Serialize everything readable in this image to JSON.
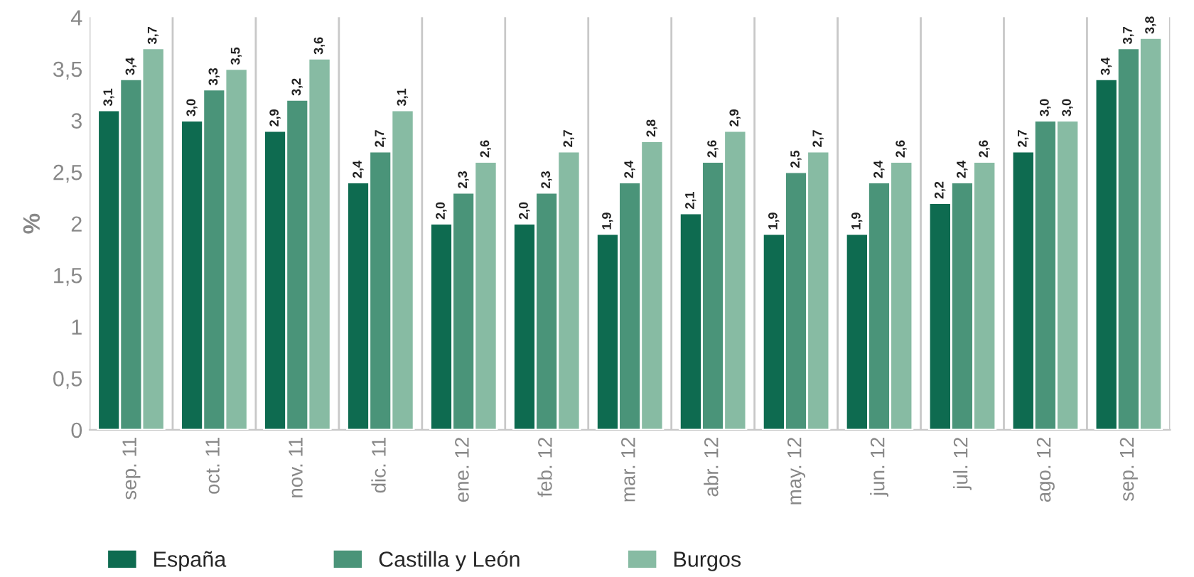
{
  "chart_data": {
    "type": "bar",
    "ylabel": "%",
    "categories": [
      "sep. 11",
      "oct. 11",
      "nov. 11",
      "dic. 11",
      "ene. 12",
      "feb. 12",
      "mar. 12",
      "abr. 12",
      "may. 12",
      "jun. 12",
      "jul. 12",
      "ago. 12",
      "sep. 12"
    ],
    "series": [
      {
        "name": "España",
        "color": "#0e6b50",
        "values": [
          3.1,
          3.0,
          2.9,
          2.4,
          2.0,
          2.0,
          1.9,
          2.1,
          1.9,
          1.9,
          2.2,
          2.7,
          3.4
        ],
        "value_labels": [
          "3,1",
          "3,0",
          "2,9",
          "2,4",
          "2,0",
          "2,0",
          "1,9",
          "2,1",
          "1,9",
          "1,9",
          "2,2",
          "2,7",
          "3,4"
        ]
      },
      {
        "name": "Castilla y León",
        "color": "#4a9479",
        "values": [
          3.4,
          3.3,
          3.2,
          2.7,
          2.3,
          2.3,
          2.4,
          2.6,
          2.5,
          2.4,
          2.4,
          3.0,
          3.7
        ],
        "value_labels": [
          "3,4",
          "3,3",
          "3,2",
          "2,7",
          "2,3",
          "2,3",
          "2,4",
          "2,6",
          "2,5",
          "2,4",
          "2,4",
          "3,0",
          "3,7"
        ]
      },
      {
        "name": "Burgos",
        "color": "#87bba3",
        "values": [
          3.7,
          3.5,
          3.6,
          3.1,
          2.6,
          2.7,
          2.8,
          2.9,
          2.7,
          2.6,
          2.6,
          3.0,
          3.8
        ],
        "value_labels": [
          "3,7",
          "3,5",
          "3,6",
          "3,1",
          "2,6",
          "2,7",
          "2,8",
          "2,9",
          "2,7",
          "2,6",
          "2,6",
          "3,0",
          "3,8"
        ]
      }
    ],
    "ylim": [
      0,
      4
    ],
    "yticks": [
      0,
      {
        "value": 0.5,
        "label": "0,5"
      },
      1,
      {
        "value": 1.5,
        "label": "1,5"
      },
      2,
      {
        "value": 2.5,
        "label": "2,5"
      },
      3,
      {
        "value": 3.5,
        "label": "3,5"
      },
      4
    ],
    "grid": "x",
    "legend": "bottom left"
  }
}
